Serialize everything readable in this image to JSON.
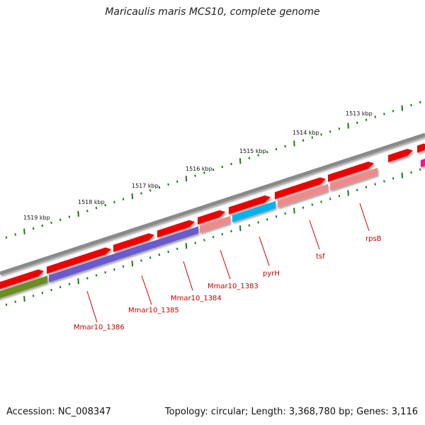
{
  "title": "Maricaulis maris MCS10, complete genome",
  "footer": {
    "accession": "Accession: NC_008347",
    "stats": "Topology: circular; Length: 3,368,780 bp; Genes: 3,116"
  },
  "colors": {
    "backbone": "#8a8a8a",
    "cds_red": "#ee0000",
    "cds_pink": "#f08a8a",
    "purple": "#6a5acd",
    "olive": "#6b8e23",
    "cyan": "#00b2ee",
    "magenta": "#ee1493",
    "tick": "#1a7a1a",
    "label": "#cc0000"
  },
  "ruler": {
    "labels": [
      "1519 kbp",
      "1518 kbp",
      "1517 kbp",
      "1516 kbp",
      "1515 kbp",
      "1514 kbp",
      "1513 kbp"
    ]
  },
  "genes": [
    {
      "label": "Mmar10_1386"
    },
    {
      "label": "Mmar10_1385"
    },
    {
      "label": "Mmar10_1384"
    },
    {
      "label": "Mmar10_1383"
    },
    {
      "label": "pyrH"
    },
    {
      "label": "tsf"
    },
    {
      "label": "rpsB"
    }
  ]
}
